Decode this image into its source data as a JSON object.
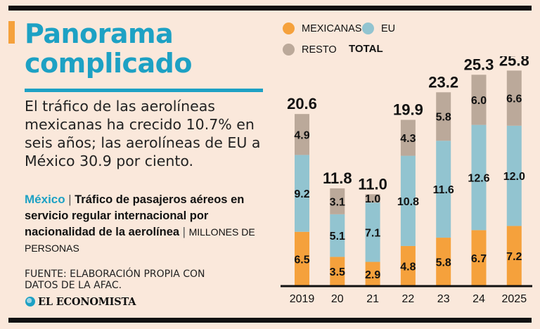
{
  "header": {
    "title": "Panorama complicado",
    "subtitle": "El tráfico de las aerolíneas mexicanas ha crecido 10.7% en seis años; las aerolíneas de EU a México 30.9 por ciento."
  },
  "description": {
    "country": "México",
    "separator": "|",
    "headline": "Tráfico de pasajeros aéreos en servicio regular internacional por nacionalidad de la aerolínea",
    "units": "MILLONES DE PERSONAS"
  },
  "source": "FUENTE: ELABORACIÓN PROPIA CON DATOS DE LA AFAC.",
  "logo": {
    "text": "EL ECONOMISTA"
  },
  "legend": {
    "items": [
      {
        "name": "MEXICANAS",
        "color": "#f5a13c"
      },
      {
        "name": "EU",
        "color": "#92c4d0"
      },
      {
        "name": "RESTO",
        "color": "#bba99a"
      }
    ],
    "total_label": "TOTAL"
  },
  "chart_data": {
    "type": "bar",
    "stacked": true,
    "title": "Panorama complicado",
    "xlabel": "",
    "ylabel": "Millones de personas",
    "ylim": [
      0,
      26
    ],
    "categories": [
      "2019",
      "20",
      "21",
      "22",
      "23",
      "24",
      "2025"
    ],
    "series": [
      {
        "name": "MEXICANAS",
        "color": "#f5a13c",
        "values": [
          6.5,
          3.5,
          2.9,
          4.8,
          5.8,
          6.7,
          7.2
        ]
      },
      {
        "name": "EU",
        "color": "#92c4d0",
        "values": [
          9.2,
          5.1,
          7.1,
          10.8,
          11.6,
          12.6,
          12.0
        ]
      },
      {
        "name": "RESTO",
        "color": "#bba99a",
        "values": [
          4.9,
          3.1,
          1.0,
          4.3,
          5.8,
          6.0,
          6.6
        ]
      }
    ],
    "totals": [
      20.6,
      11.8,
      11.0,
      19.9,
      23.2,
      25.3,
      25.8
    ],
    "grid": false,
    "legend_position": "top"
  }
}
